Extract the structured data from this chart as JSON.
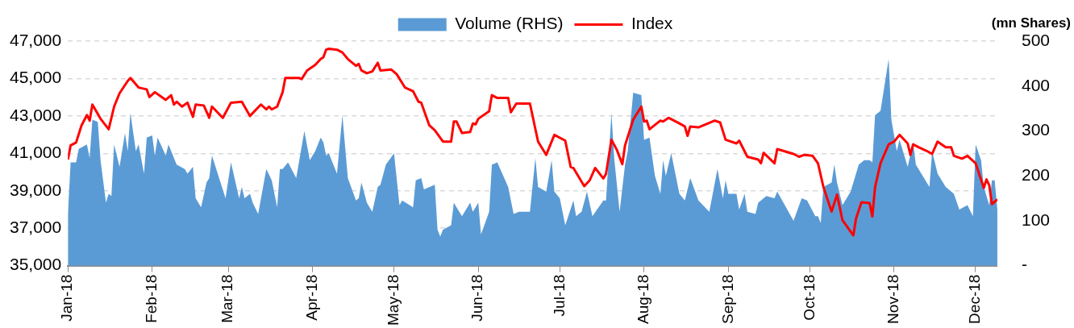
{
  "chart_data": {
    "type": "line",
    "y2label": "(mn Shares)",
    "legend": "top",
    "grid": "y",
    "xlim": [
      "2018-01-01",
      "2018-12-09"
    ],
    "xticks": [
      {
        "value": "2018-01-01",
        "label": "Jan-18"
      },
      {
        "value": "2018-02-01",
        "label": "Feb-18"
      },
      {
        "value": "2018-03-01",
        "label": "Mar-18"
      },
      {
        "value": "2018-04-01",
        "label": "Apr-18"
      },
      {
        "value": "2018-05-01",
        "label": "May-18"
      },
      {
        "value": "2018-06-01",
        "label": "Jun-18"
      },
      {
        "value": "2018-07-01",
        "label": "Jul-18"
      },
      {
        "value": "2018-08-01",
        "label": "Aug-18"
      },
      {
        "value": "2018-09-01",
        "label": "Sep-18"
      },
      {
        "value": "2018-10-01",
        "label": "Oct-18"
      },
      {
        "value": "2018-11-01",
        "label": "Nov-18"
      },
      {
        "value": "2018-12-01",
        "label": "Dec-18"
      }
    ],
    "ylim": [
      35000,
      47000
    ],
    "yticks": [
      {
        "value": 35000,
        "label": "35,000"
      },
      {
        "value": 37000,
        "label": "37,000"
      },
      {
        "value": 39000,
        "label": "39,000"
      },
      {
        "value": 41000,
        "label": "41,000"
      },
      {
        "value": 43000,
        "label": "43,000"
      },
      {
        "value": 45000,
        "label": "45,000"
      },
      {
        "value": 47000,
        "label": "47,000"
      }
    ],
    "y2lim": [
      0,
      500
    ],
    "y2ticks": [
      {
        "value": 0,
        "label": "-"
      },
      100,
      200,
      300,
      400,
      500
    ],
    "series": [
      {
        "name": "Volume (RHS)",
        "type": "area",
        "axis": "y2",
        "color": "#5b9bd5",
        "x": [
          "2018-01-01",
          "2018-01-02",
          "2018-01-04",
          "2018-01-05",
          "2018-01-08",
          "2018-01-09",
          "2018-01-10",
          "2018-01-12",
          "2018-01-13",
          "2018-01-15",
          "2018-01-16",
          "2018-01-17",
          "2018-01-18",
          "2018-01-20",
          "2018-01-22",
          "2018-01-23",
          "2018-01-24",
          "2018-01-26",
          "2018-01-27",
          "2018-01-29",
          "2018-01-30",
          "2018-02-01",
          "2018-02-02",
          "2018-02-03",
          "2018-02-06",
          "2018-02-07",
          "2018-02-10",
          "2018-02-13",
          "2018-02-14",
          "2018-02-16",
          "2018-02-17",
          "2018-02-19",
          "2018-02-21",
          "2018-02-22",
          "2018-02-23",
          "2018-02-28",
          "2018-03-02",
          "2018-03-05",
          "2018-03-06",
          "2018-03-07",
          "2018-03-09",
          "2018-03-10",
          "2018-03-12",
          "2018-03-15",
          "2018-03-17",
          "2018-03-19",
          "2018-03-20",
          "2018-03-21",
          "2018-03-23",
          "2018-03-26",
          "2018-03-27",
          "2018-03-29",
          "2018-03-31",
          "2018-04-02",
          "2018-04-04",
          "2018-04-05",
          "2018-04-06",
          "2018-04-07",
          "2018-04-09",
          "2018-04-10",
          "2018-04-12",
          "2018-04-14",
          "2018-04-17",
          "2018-04-18",
          "2018-04-19",
          "2018-04-21",
          "2018-04-23",
          "2018-04-25",
          "2018-04-26",
          "2018-04-28",
          "2018-05-01",
          "2018-05-03",
          "2018-05-04",
          "2018-05-08",
          "2018-05-09",
          "2018-05-11",
          "2018-05-12",
          "2018-05-16",
          "2018-05-17",
          "2018-05-18",
          "2018-05-19",
          "2018-05-22",
          "2018-05-23",
          "2018-05-25",
          "2018-05-26",
          "2018-05-29",
          "2018-05-30",
          "2018-06-01",
          "2018-06-02",
          "2018-06-05",
          "2018-06-06",
          "2018-06-08",
          "2018-06-12",
          "2018-06-14",
          "2018-06-16",
          "2018-06-20",
          "2018-06-22",
          "2018-06-23",
          "2018-06-26",
          "2018-06-28",
          "2018-06-29",
          "2018-07-01",
          "2018-07-03",
          "2018-07-06",
          "2018-07-07",
          "2018-07-09",
          "2018-07-11",
          "2018-07-13",
          "2018-07-17",
          "2018-07-18",
          "2018-07-20",
          "2018-07-21",
          "2018-07-23",
          "2018-07-25",
          "2018-07-26",
          "2018-07-28",
          "2018-07-31",
          "2018-08-01",
          "2018-08-03",
          "2018-08-05",
          "2018-08-07",
          "2018-08-08",
          "2018-08-09",
          "2018-08-11",
          "2018-08-14",
          "2018-08-16",
          "2018-08-18",
          "2018-08-21",
          "2018-08-25",
          "2018-08-28",
          "2018-08-30",
          "2018-08-31",
          "2018-09-01",
          "2018-09-04",
          "2018-09-05",
          "2018-09-07",
          "2018-09-08",
          "2018-09-11",
          "2018-09-12",
          "2018-09-15",
          "2018-09-18",
          "2018-09-19",
          "2018-09-25",
          "2018-09-28",
          "2018-09-30",
          "2018-10-03",
          "2018-10-04",
          "2018-10-05",
          "2018-10-06",
          "2018-10-09",
          "2018-10-10",
          "2018-10-11",
          "2018-10-13",
          "2018-10-16",
          "2018-10-19",
          "2018-10-21",
          "2018-10-23",
          "2018-10-24",
          "2018-10-25",
          "2018-10-27",
          "2018-10-30",
          "2018-10-31",
          "2018-11-02",
          "2018-11-03",
          "2018-11-06",
          "2018-11-08",
          "2018-11-09",
          "2018-11-14",
          "2018-11-15",
          "2018-11-17",
          "2018-11-20",
          "2018-11-23",
          "2018-11-25",
          "2018-11-28",
          "2018-11-30",
          "2018-12-01",
          "2018-12-03",
          "2018-12-04",
          "2018-12-06",
          "2018-12-07",
          "2018-12-08",
          "2018-12-09"
        ],
        "values": [
          115,
          230,
          230,
          260,
          270,
          240,
          325,
          320,
          235,
          140,
          160,
          155,
          270,
          220,
          295,
          255,
          340,
          255,
          270,
          205,
          285,
          290,
          245,
          285,
          245,
          270,
          225,
          215,
          205,
          220,
          150,
          130,
          185,
          195,
          245,
          150,
          230,
          150,
          175,
          150,
          160,
          140,
          115,
          215,
          190,
          130,
          215,
          215,
          230,
          195,
          230,
          300,
          235,
          255,
          285,
          275,
          245,
          250,
          220,
          205,
          335,
          195,
          145,
          150,
          185,
          140,
          120,
          175,
          180,
          225,
          250,
          135,
          145,
          130,
          190,
          195,
          170,
          180,
          80,
          65,
          80,
          90,
          140,
          120,
          110,
          140,
          120,
          140,
          70,
          120,
          225,
          230,
          175,
          115,
          120,
          120,
          240,
          175,
          165,
          235,
          165,
          150,
          90,
          145,
          110,
          120,
          165,
          110,
          145,
          145,
          340,
          240,
          120,
          225,
          255,
          385,
          380,
          280,
          285,
          200,
          160,
          235,
          200,
          250,
          160,
          145,
          195,
          145,
          120,
          215,
          150,
          190,
          160,
          160,
          125,
          160,
          120,
          115,
          140,
          155,
          150,
          165,
          100,
          150,
          145,
          110,
          110,
          95,
          175,
          185,
          225,
          185,
          135,
          165,
          225,
          235,
          235,
          230,
          335,
          345,
          460,
          325,
          255,
          280,
          220,
          275,
          225,
          175,
          255,
          205,
          175,
          160,
          125,
          135,
          110,
          270,
          235,
          175,
          135,
          190,
          190,
          125
        ]
      },
      {
        "name": "Index",
        "type": "line",
        "color": "#ff0000",
        "x": [
          "2018-01-01",
          "2018-01-02",
          "2018-01-04",
          "2018-01-06",
          "2018-01-08",
          "2018-01-09",
          "2018-01-10",
          "2018-01-13",
          "2018-01-16",
          "2018-01-18",
          "2018-01-20",
          "2018-01-23",
          "2018-01-24",
          "2018-01-27",
          "2018-01-30",
          "2018-01-31",
          "2018-02-02",
          "2018-02-06",
          "2018-02-08",
          "2018-02-09",
          "2018-02-10",
          "2018-02-12",
          "2018-02-14",
          "2018-02-16",
          "2018-02-17",
          "2018-02-20",
          "2018-02-22",
          "2018-02-23",
          "2018-02-27",
          "2018-03-02",
          "2018-03-06",
          "2018-03-09",
          "2018-03-13",
          "2018-03-15",
          "2018-03-16",
          "2018-03-17",
          "2018-03-19",
          "2018-03-21",
          "2018-03-22",
          "2018-03-27",
          "2018-03-28",
          "2018-03-30",
          "2018-04-02",
          "2018-04-04",
          "2018-04-05",
          "2018-04-06",
          "2018-04-07",
          "2018-04-10",
          "2018-04-12",
          "2018-04-14",
          "2018-04-17",
          "2018-04-18",
          "2018-04-19",
          "2018-04-21",
          "2018-04-23",
          "2018-04-25",
          "2018-04-26",
          "2018-04-30",
          "2018-05-02",
          "2018-05-05",
          "2018-05-08",
          "2018-05-10",
          "2018-05-11",
          "2018-05-14",
          "2018-05-16",
          "2018-05-19",
          "2018-05-22",
          "2018-05-23",
          "2018-05-24",
          "2018-05-26",
          "2018-05-29",
          "2018-05-30",
          "2018-05-31",
          "2018-06-01",
          "2018-06-05",
          "2018-06-06",
          "2018-06-08",
          "2018-06-12",
          "2018-06-13",
          "2018-06-15",
          "2018-06-20",
          "2018-06-23",
          "2018-06-26",
          "2018-06-29",
          "2018-07-03",
          "2018-07-05",
          "2018-07-06",
          "2018-07-10",
          "2018-07-12",
          "2018-07-14",
          "2018-07-17",
          "2018-07-18",
          "2018-07-20",
          "2018-07-22",
          "2018-07-24",
          "2018-07-25",
          "2018-07-28",
          "2018-07-31",
          "2018-08-01",
          "2018-08-02",
          "2018-08-03",
          "2018-08-07",
          "2018-08-08",
          "2018-08-10",
          "2018-08-14",
          "2018-08-16",
          "2018-08-17",
          "2018-08-18",
          "2018-08-21",
          "2018-08-27",
          "2018-08-29",
          "2018-08-31",
          "2018-09-04",
          "2018-09-05",
          "2018-09-08",
          "2018-09-12",
          "2018-09-13",
          "2018-09-14",
          "2018-09-18",
          "2018-09-19",
          "2018-09-25",
          "2018-09-27",
          "2018-09-29",
          "2018-10-02",
          "2018-10-04",
          "2018-10-06",
          "2018-10-09",
          "2018-10-11",
          "2018-10-13",
          "2018-10-17",
          "2018-10-18",
          "2018-10-20",
          "2018-10-23",
          "2018-10-24",
          "2018-10-25",
          "2018-10-27",
          "2018-10-30",
          "2018-11-01",
          "2018-11-03",
          "2018-11-06",
          "2018-11-07",
          "2018-11-08",
          "2018-11-10",
          "2018-11-13",
          "2018-11-15",
          "2018-11-17",
          "2018-11-20",
          "2018-11-22",
          "2018-11-23",
          "2018-11-26",
          "2018-11-28",
          "2018-12-01",
          "2018-12-04",
          "2018-12-05",
          "2018-12-06",
          "2018-12-07",
          "2018-12-09"
        ],
        "values": [
          40670,
          41430,
          41580,
          42490,
          43050,
          42750,
          43610,
          42850,
          42290,
          43500,
          44210,
          44870,
          45030,
          44520,
          44420,
          44010,
          44270,
          43860,
          44110,
          43610,
          43760,
          43500,
          43710,
          42950,
          43610,
          43560,
          42900,
          43500,
          42900,
          43710,
          43760,
          43000,
          43610,
          43350,
          43500,
          43350,
          43500,
          44270,
          45030,
          45030,
          44970,
          45430,
          45730,
          46040,
          46140,
          46540,
          46590,
          46540,
          46390,
          46040,
          45680,
          45780,
          45430,
          45280,
          45380,
          45840,
          45430,
          45480,
          45230,
          44520,
          44320,
          43760,
          43710,
          42490,
          42240,
          41630,
          41630,
          42700,
          42700,
          42090,
          42140,
          42600,
          42550,
          42850,
          43250,
          44110,
          43960,
          43960,
          43200,
          43660,
          43660,
          41630,
          40920,
          41990,
          41680,
          40270,
          40220,
          39250,
          39560,
          40220,
          39660,
          39910,
          41730,
          41180,
          40420,
          41430,
          42800,
          43500,
          42700,
          42750,
          42290,
          42750,
          42700,
          42900,
          42600,
          42440,
          41940,
          42440,
          42390,
          42750,
          42650,
          41730,
          41530,
          41680,
          40820,
          40670,
          40470,
          41030,
          40470,
          41230,
          40970,
          40820,
          40920,
          40870,
          40470,
          39200,
          37890,
          38800,
          37430,
          36620,
          37530,
          38390,
          38340,
          37630,
          39200,
          40470,
          41480,
          41630,
          41990,
          41530,
          40920,
          41480,
          41330,
          41130,
          40970,
          41630,
          41330,
          41330,
          40870,
          40720,
          40870,
          40470,
          39150,
          39610,
          39300,
          38290,
          38540
        ]
      }
    ]
  }
}
